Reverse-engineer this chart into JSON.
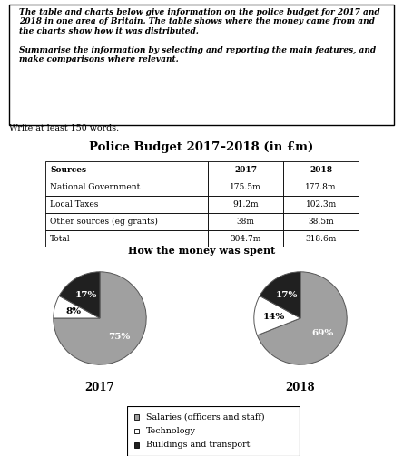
{
  "write_text": "Write at least 150 words.",
  "table_title": "Police Budget 2017–2018 (in £m)",
  "table_headers": [
    "Sources",
    "2017",
    "2018"
  ],
  "table_rows": [
    [
      "National Government",
      "175.5m",
      "177.8m"
    ],
    [
      "Local Taxes",
      "91.2m",
      "102.3m"
    ],
    [
      "Other sources (eg grants)",
      "38m",
      "38.5m"
    ],
    [
      "Total",
      "304.7m",
      "318.6m"
    ]
  ],
  "pie_title": "How the money was spent",
  "pie_2017": [
    75,
    8,
    17
  ],
  "pie_2018": [
    69,
    14,
    17
  ],
  "pie_labels_2017": [
    "75%",
    "8%",
    "17%"
  ],
  "pie_labels_2018": [
    "69%",
    "14%",
    "17%"
  ],
  "pie_colors": [
    "#a0a0a0",
    "#ffffff",
    "#202020"
  ],
  "pie_year_labels": [
    "2017",
    "2018"
  ],
  "legend_labels": [
    "Salaries (officers and staff)",
    "Technology",
    "Buildings and transport"
  ],
  "legend_colors": [
    "#a0a0a0",
    "#ffffff",
    "#202020"
  ],
  "bg_color": "#ffffff"
}
